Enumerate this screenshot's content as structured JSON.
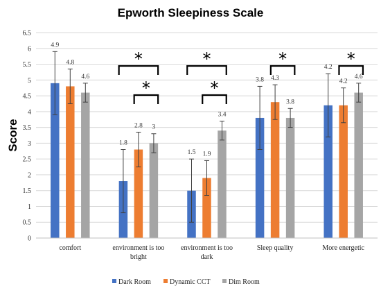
{
  "chart_data": {
    "type": "bar",
    "title": "Epworth Sleepiness Scale",
    "xlabel": "",
    "ylabel": "Score",
    "ylim": [
      0,
      6.5
    ],
    "yticks": [
      "0",
      "0.5",
      "1",
      "1.5",
      "2",
      "2.5",
      "3",
      "3.5",
      "4",
      "4.5",
      "5",
      "5.5",
      "6",
      "6.5"
    ],
    "categories": [
      [
        "comfort"
      ],
      [
        "environment is too",
        "bright"
      ],
      [
        "environment is too",
        "dark"
      ],
      [
        "Sleep quality"
      ],
      [
        "More energetic"
      ]
    ],
    "series": [
      {
        "name": "Dark Room",
        "color": "#4472c4",
        "values": [
          4.9,
          1.8,
          1.5,
          3.8,
          4.2
        ],
        "errors": [
          1.0,
          1.0,
          1.0,
          1.0,
          1.0
        ],
        "labels": [
          "4.9",
          "1.8",
          "1.5",
          "3.8",
          "4.2"
        ]
      },
      {
        "name": "Dynamic CCT",
        "color": "#ed7d31",
        "values": [
          4.8,
          2.8,
          1.9,
          4.3,
          4.2
        ],
        "errors": [
          0.55,
          0.55,
          0.55,
          0.55,
          0.55
        ],
        "labels": [
          "4.8",
          "2.8",
          "1.9",
          "4.3",
          "4.2"
        ]
      },
      {
        "name": "Dim Room",
        "color": "#a5a5a5",
        "values": [
          4.6,
          3.0,
          3.4,
          3.8,
          4.6
        ],
        "errors": [
          0.3,
          0.3,
          0.3,
          0.3,
          0.3
        ],
        "labels": [
          "4.6",
          "3",
          "3.4",
          "3.8",
          "4.6"
        ]
      }
    ],
    "significance": [
      {
        "category": 1,
        "from_series": 0,
        "to_series": 2,
        "level": "upper",
        "label": "*"
      },
      {
        "category": 1,
        "from_series": 1,
        "to_series": 2,
        "level": "lower",
        "label": "*"
      },
      {
        "category": 2,
        "from_series": 0,
        "to_series": 2,
        "level": "upper",
        "label": "*"
      },
      {
        "category": 2,
        "from_series": 1,
        "to_series": 2,
        "level": "lower",
        "label": "*"
      },
      {
        "category": 3,
        "from_series": 1,
        "to_series": 2,
        "level": "upper",
        "label": "*"
      },
      {
        "category": 4,
        "from_series": 1,
        "to_series": 2,
        "level": "upper",
        "label": "*"
      }
    ],
    "grid": true,
    "legend_position": "bottom"
  }
}
